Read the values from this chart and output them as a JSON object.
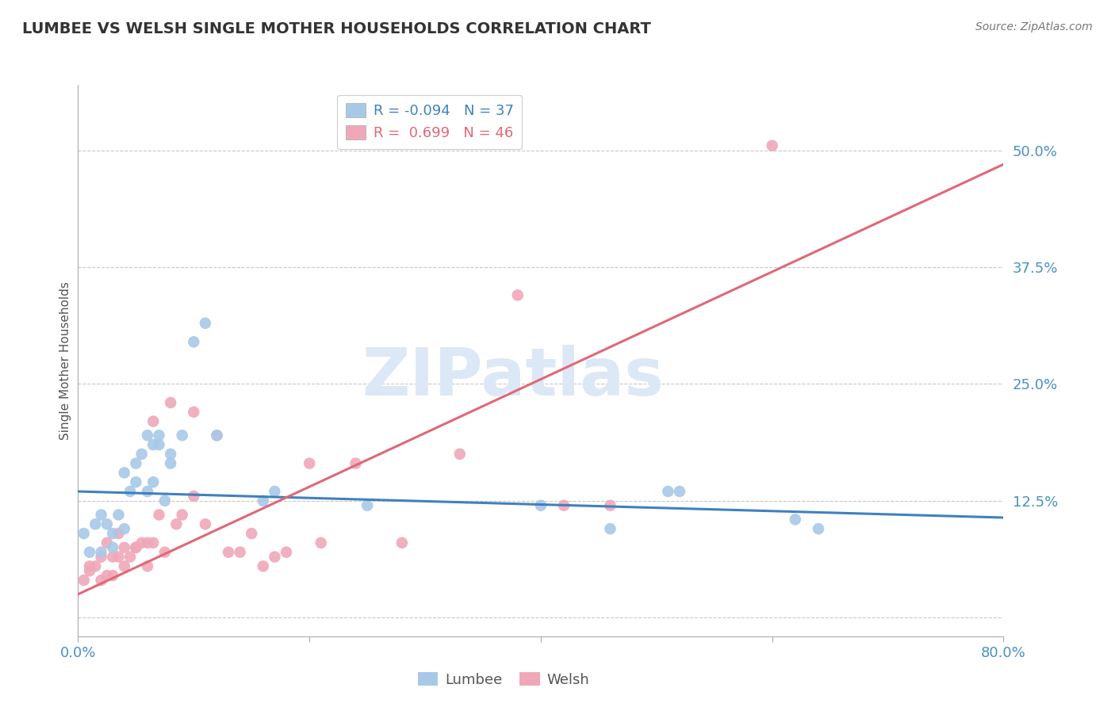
{
  "title": "LUMBEE VS WELSH SINGLE MOTHER HOUSEHOLDS CORRELATION CHART",
  "source": "Source: ZipAtlas.com",
  "ylabel": "Single Mother Households",
  "xlabel": "",
  "xlim": [
    0.0,
    0.8
  ],
  "ylim": [
    -0.02,
    0.57
  ],
  "yticks": [
    0.0,
    0.125,
    0.25,
    0.375,
    0.5
  ],
  "ytick_labels": [
    "",
    "12.5%",
    "25.0%",
    "37.5%",
    "50.0%"
  ],
  "xticks": [
    0.0,
    0.2,
    0.4,
    0.6,
    0.8
  ],
  "xtick_labels": [
    "0.0%",
    "",
    "",
    "",
    "80.0%"
  ],
  "grid_color": "#c8c8c8",
  "background_color": "#ffffff",
  "watermark": "ZIPatlas",
  "watermark_color": "#dce8f5",
  "lumbee_R": -0.094,
  "lumbee_N": 37,
  "welsh_R": 0.699,
  "welsh_N": 46,
  "lumbee_color": "#a8c8e8",
  "welsh_color": "#f0a8b8",
  "lumbee_line_color": "#4080c0",
  "welsh_line_color": "#e06878",
  "lumbee_x": [
    0.005,
    0.01,
    0.015,
    0.02,
    0.02,
    0.025,
    0.03,
    0.03,
    0.035,
    0.04,
    0.04,
    0.045,
    0.05,
    0.05,
    0.055,
    0.06,
    0.06,
    0.065,
    0.065,
    0.07,
    0.07,
    0.075,
    0.08,
    0.08,
    0.09,
    0.1,
    0.11,
    0.12,
    0.16,
    0.17,
    0.25,
    0.4,
    0.46,
    0.51,
    0.52,
    0.62,
    0.64
  ],
  "lumbee_y": [
    0.09,
    0.07,
    0.1,
    0.11,
    0.07,
    0.1,
    0.09,
    0.075,
    0.11,
    0.095,
    0.155,
    0.135,
    0.145,
    0.165,
    0.175,
    0.195,
    0.135,
    0.185,
    0.145,
    0.195,
    0.185,
    0.125,
    0.165,
    0.175,
    0.195,
    0.295,
    0.315,
    0.195,
    0.125,
    0.135,
    0.12,
    0.12,
    0.095,
    0.135,
    0.135,
    0.105,
    0.095
  ],
  "welsh_x": [
    0.005,
    0.01,
    0.01,
    0.015,
    0.02,
    0.02,
    0.025,
    0.025,
    0.03,
    0.03,
    0.035,
    0.035,
    0.04,
    0.04,
    0.045,
    0.05,
    0.05,
    0.055,
    0.06,
    0.06,
    0.065,
    0.065,
    0.07,
    0.075,
    0.08,
    0.085,
    0.09,
    0.1,
    0.1,
    0.11,
    0.12,
    0.13,
    0.14,
    0.15,
    0.16,
    0.17,
    0.18,
    0.2,
    0.21,
    0.24,
    0.28,
    0.33,
    0.38,
    0.42,
    0.46,
    0.6
  ],
  "welsh_y": [
    0.04,
    0.05,
    0.055,
    0.055,
    0.04,
    0.065,
    0.045,
    0.08,
    0.045,
    0.065,
    0.065,
    0.09,
    0.055,
    0.075,
    0.065,
    0.075,
    0.075,
    0.08,
    0.055,
    0.08,
    0.21,
    0.08,
    0.11,
    0.07,
    0.23,
    0.1,
    0.11,
    0.13,
    0.22,
    0.1,
    0.195,
    0.07,
    0.07,
    0.09,
    0.055,
    0.065,
    0.07,
    0.165,
    0.08,
    0.165,
    0.08,
    0.175,
    0.345,
    0.12,
    0.12,
    0.505
  ],
  "lumbee_trendline_x": [
    0.0,
    0.8
  ],
  "lumbee_trendline_y": [
    0.135,
    0.107
  ],
  "welsh_trendline_x": [
    0.0,
    0.8
  ],
  "welsh_trendline_y": [
    0.025,
    0.485
  ]
}
